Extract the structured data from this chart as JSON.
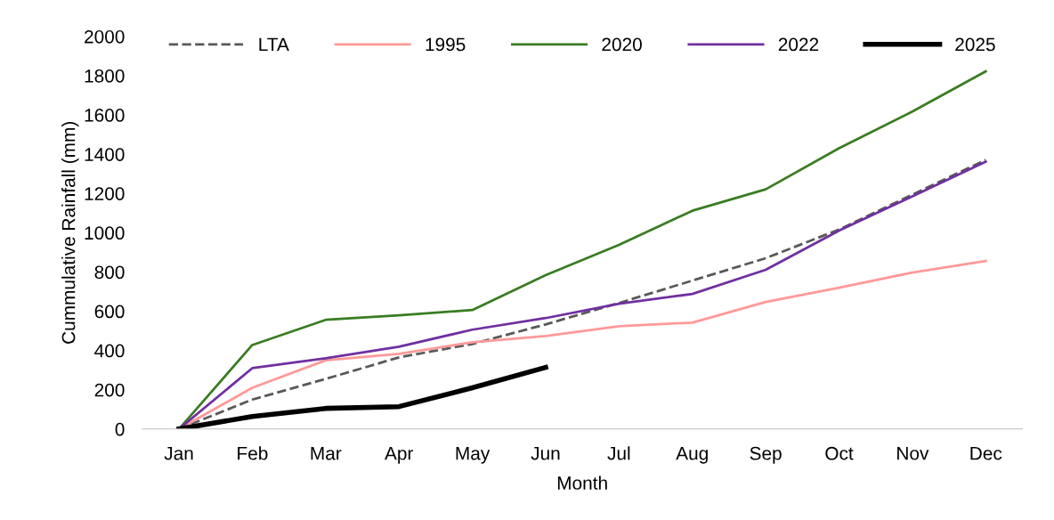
{
  "chart_data": {
    "type": "line",
    "xlabel": "Month",
    "ylabel": "Cummulative Rainfall (mm)",
    "categories": [
      "Jan",
      "Feb",
      "Mar",
      "Apr",
      "May",
      "Jun",
      "Jul",
      "Aug",
      "Sep",
      "Oct",
      "Nov",
      "Dec"
    ],
    "series": [
      {
        "name": "LTA",
        "color": "#595959",
        "line_style": "dashed",
        "values": [
          0,
          150,
          255,
          365,
          433,
          533,
          642,
          756,
          870,
          1016,
          1194,
          1371
        ]
      },
      {
        "name": "1995",
        "color": "#ff9999",
        "values": [
          0,
          210,
          350,
          383,
          442,
          474,
          524,
          542,
          647,
          720,
          797,
          856
        ]
      },
      {
        "name": "2020",
        "color": "#3a7d22",
        "values": [
          0,
          428,
          556,
          579,
          606,
          784,
          938,
          1112,
          1221,
          1430,
          1617,
          1822
        ]
      },
      {
        "name": "2022",
        "color": "#7030a0",
        "values": [
          0,
          310,
          360,
          419,
          506,
          565,
          638,
          688,
          811,
          1011,
          1185,
          1362
        ]
      },
      {
        "name": "2025",
        "color": "#000000",
        "values": [
          0,
          64,
          105,
          114,
          210,
          314,
          null,
          null,
          null,
          null,
          null,
          null
        ]
      }
    ],
    "ylim": [
      0,
      2000
    ],
    "yticks": [
      0,
      200,
      400,
      600,
      800,
      1000,
      1200,
      1400,
      1600,
      1800,
      2000
    ],
    "grid": false,
    "legend": "top",
    "marker": "none",
    "line_style": "solid"
  }
}
